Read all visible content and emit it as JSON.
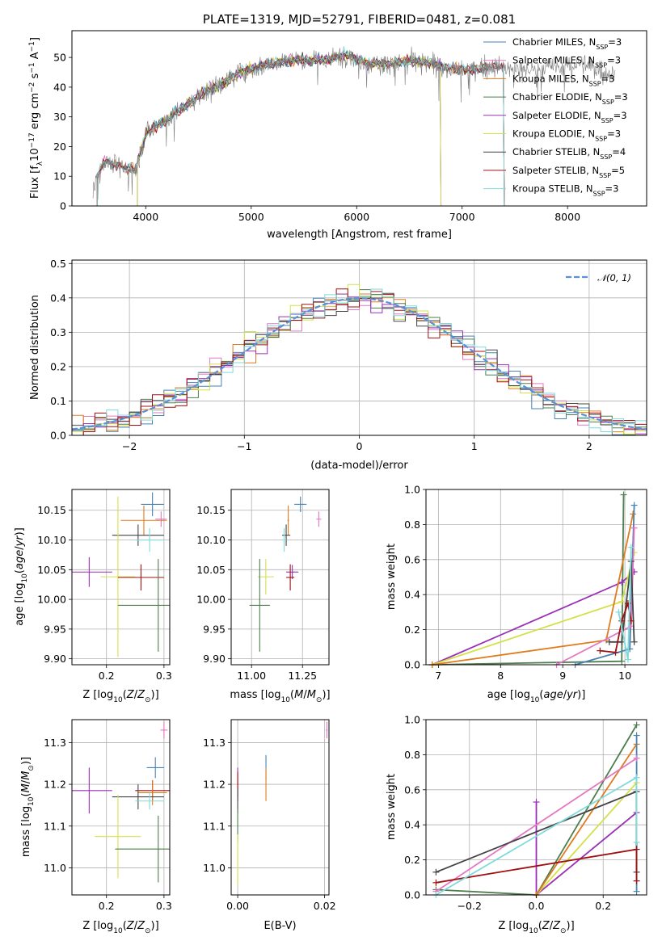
{
  "colors": {
    "chabrier_miles": "#4682b4",
    "salpeter_miles": "#e377c2",
    "kroupa_miles": "#e07b1e",
    "chabrier_elodie": "#4e7d4e",
    "salpeter_elodie": "#9a31b4",
    "kroupa_elodie": "#d4e04a",
    "chabrier_stelib": "#444444",
    "salpeter_stelib": "#a01010",
    "kroupa_stelib": "#7fdada",
    "data": "#7f7f7f",
    "normal": "#5b8fd6"
  },
  "chart_data": [
    {
      "id": "spectrum",
      "type": "line",
      "title": "PLATE=1319, MJD=52791, FIBERID=0481, z=0.081",
      "xlabel": "wavelength [Angstrom, rest frame]",
      "ylabel": "Flux [f_λ10^-17 erg cm^-2 s^-1 A^-1]",
      "xlim": [
        3300,
        8750
      ],
      "ylim": [
        0,
        59
      ],
      "xticks": [
        4000,
        5000,
        6000,
        7000,
        8000
      ],
      "yticks": [
        0,
        10,
        20,
        30,
        40,
        50
      ],
      "continuum": {
        "x": [
          3500,
          3600,
          3700,
          3800,
          3900,
          4000,
          4100,
          4200,
          4300,
          4400,
          4500,
          4700,
          4900,
          5100,
          5300,
          5500,
          5700,
          5900,
          6100,
          6300,
          6500,
          6700,
          6900,
          7100,
          7300,
          7500,
          7700,
          7900,
          8100,
          8300,
          8450
        ],
        "y": [
          6,
          15,
          14,
          13,
          12,
          24,
          27,
          29,
          32,
          34,
          37,
          41,
          45,
          47,
          49,
          49,
          49,
          51,
          48,
          48,
          49,
          48,
          46,
          46,
          47,
          46,
          46,
          47,
          48,
          46,
          44
        ]
      },
      "legend": {
        "position": "upper right",
        "entries": [
          {
            "key": "chabrier_miles",
            "text": "Chabrier MILES, N",
            "sub": "SSP",
            "tail": "=3"
          },
          {
            "key": "salpeter_miles",
            "text": "Salpeter MILES, N",
            "sub": "SSP",
            "tail": "=3"
          },
          {
            "key": "kroupa_miles",
            "text": "Kroupa MILES, N",
            "sub": "SSP",
            "tail": "=3"
          },
          {
            "key": "chabrier_elodie",
            "text": "Chabrier ELODIE, N",
            "sub": "SSP",
            "tail": "=3"
          },
          {
            "key": "salpeter_elodie",
            "text": "Salpeter ELODIE, N",
            "sub": "SSP",
            "tail": "=3"
          },
          {
            "key": "kroupa_elodie",
            "text": "Kroupa ELODIE, N",
            "sub": "SSP",
            "tail": "=3"
          },
          {
            "key": "chabrier_stelib",
            "text": "Chabrier STELIB, N",
            "sub": "SSP",
            "tail": "=4"
          },
          {
            "key": "salpeter_stelib",
            "text": "Salpeter STELIB, N",
            "sub": "SSP",
            "tail": "=5"
          },
          {
            "key": "kroupa_stelib",
            "text": "Kroupa STELIB, N",
            "sub": "SSP",
            "tail": "=3"
          }
        ]
      }
    },
    {
      "id": "residuals",
      "type": "histogram",
      "xlabel": "(data-model)/error",
      "ylabel": "Normed distribution",
      "xlim": [
        -2.5,
        2.5
      ],
      "ylim": [
        0,
        0.51
      ],
      "xticks": [
        -2,
        -1,
        0,
        1,
        2
      ],
      "yticks": [
        0.0,
        0.1,
        0.2,
        0.3,
        0.4,
        0.5
      ],
      "bin_width": 0.1,
      "legend": {
        "position": "upper right",
        "label": "𝒩(0, 1)"
      }
    },
    {
      "id": "age_vs_Z",
      "type": "scatter",
      "xlabel": "Z [log10(Z/Z⊙)]",
      "ylabel": "age [log10(age/yr)]",
      "xlim": [
        0.14,
        0.31
      ],
      "ylim": [
        9.89,
        10.185
      ],
      "xticks": [
        0.2,
        0.3
      ],
      "yticks": [
        9.9,
        9.95,
        10.0,
        10.05,
        10.1,
        10.15
      ],
      "points": [
        {
          "key": "chabrier_miles",
          "x": 0.28,
          "y": 10.16,
          "xerr": 0.02,
          "yerr": 0.02
        },
        {
          "key": "salpeter_miles",
          "x": 0.295,
          "y": 10.135,
          "xerr": 0.01,
          "yerr": 0.013
        },
        {
          "key": "kroupa_miles",
          "x": 0.265,
          "y": 10.133,
          "xerr": 0.04,
          "yerr": 0.025
        },
        {
          "key": "chabrier_stelib",
          "x": 0.255,
          "y": 10.108,
          "xerr": 0.045,
          "yerr": 0.018
        },
        {
          "key": "kroupa_stelib",
          "x": 0.275,
          "y": 10.1,
          "xerr": 0.025,
          "yerr": 0.02
        },
        {
          "key": "salpeter_elodie",
          "x": 0.17,
          "y": 10.046,
          "xerr": 0.04,
          "yerr": 0.025
        },
        {
          "key": "kroupa_elodie",
          "x": 0.22,
          "y": 10.038,
          "xerr": 0.03,
          "yerr": 0.135
        },
        {
          "key": "salpeter_stelib",
          "x": 0.26,
          "y": 10.037,
          "xerr": 0.04,
          "yerr": 0.022
        },
        {
          "key": "chabrier_elodie",
          "x": 0.29,
          "y": 9.99,
          "xerr": 0.07,
          "yerr": 0.078
        }
      ]
    },
    {
      "id": "age_vs_mass",
      "type": "scatter",
      "xlabel": "mass [log10(M/M⊙)]",
      "ylabel": "",
      "xlim": [
        10.9,
        11.38
      ],
      "ylim": [
        9.89,
        10.185
      ],
      "xticks": [
        11.0,
        11.25
      ],
      "yticks": [
        9.9,
        9.95,
        10.0,
        10.05,
        10.1,
        10.15
      ],
      "points": [
        {
          "key": "chabrier_miles",
          "x": 11.24,
          "y": 10.16,
          "xerr": 0.03,
          "yerr": 0.013
        },
        {
          "key": "salpeter_miles",
          "x": 11.33,
          "y": 10.135,
          "xerr": 0.012,
          "yerr": 0.013
        },
        {
          "key": "kroupa_miles",
          "x": 11.18,
          "y": 10.133,
          "xerr": 0.004,
          "yerr": 0.025
        },
        {
          "key": "chabrier_stelib",
          "x": 11.17,
          "y": 10.108,
          "xerr": 0.02,
          "yerr": 0.018
        },
        {
          "key": "kroupa_stelib",
          "x": 11.16,
          "y": 10.1,
          "xerr": 0.01,
          "yerr": 0.02
        },
        {
          "key": "salpeter_elodie",
          "x": 11.2,
          "y": 10.046,
          "xerr": 0.03,
          "yerr": 0.012
        },
        {
          "key": "kroupa_elodie",
          "x": 11.07,
          "y": 10.038,
          "xerr": 0.04,
          "yerr": 0.03
        },
        {
          "key": "salpeter_stelib",
          "x": 11.19,
          "y": 10.037,
          "xerr": 0.02,
          "yerr": 0.022
        },
        {
          "key": "chabrier_elodie",
          "x": 11.04,
          "y": 9.99,
          "xerr": 0.05,
          "yerr": 0.078
        }
      ]
    },
    {
      "id": "weight_vs_age",
      "type": "line",
      "xlabel": "age [log10(age/yr)]",
      "ylabel": "mass weight",
      "xlim": [
        6.8,
        10.35
      ],
      "ylim": [
        0,
        1.0
      ],
      "xticks": [
        7,
        8,
        9,
        10
      ],
      "yticks": [
        0.0,
        0.2,
        0.4,
        0.6,
        0.8,
        1.0
      ],
      "series": [
        {
          "key": "chabrier_elodie",
          "x": [
            6.9,
            9.95,
            9.98
          ],
          "y": [
            0.0,
            0.02,
            0.97
          ]
        },
        {
          "key": "salpeter_elodie",
          "x": [
            6.9,
            9.95,
            10.15
          ],
          "y": [
            0.0,
            0.47,
            0.53
          ]
        },
        {
          "key": "kroupa_elodie",
          "x": [
            6.9,
            9.95,
            10.15
          ],
          "y": [
            0.0,
            0.36,
            0.64
          ]
        },
        {
          "key": "kroupa_miles",
          "x": [
            6.9,
            9.7,
            10.13
          ],
          "y": [
            0.0,
            0.14,
            0.86
          ]
        },
        {
          "key": "chabrier_miles",
          "x": [
            9.2,
            10.08,
            10.15
          ],
          "y": [
            0.0,
            0.09,
            0.91
          ]
        },
        {
          "key": "salpeter_miles",
          "x": [
            8.9,
            10.1,
            10.15
          ],
          "y": [
            0.0,
            0.22,
            0.78
          ]
        },
        {
          "key": "chabrier_stelib",
          "x": [
            9.75,
            9.95,
            10.1,
            10.15
          ],
          "y": [
            0.13,
            0.13,
            0.59,
            0.13
          ]
        },
        {
          "key": "salpeter_stelib",
          "x": [
            9.6,
            9.85,
            9.95,
            10.05,
            10.1
          ],
          "y": [
            0.08,
            0.07,
            0.25,
            0.35,
            0.25
          ]
        },
        {
          "key": "kroupa_stelib",
          "x": [
            9.9,
            10.05,
            10.1
          ],
          "y": [
            0.3,
            0.03,
            0.67
          ]
        }
      ]
    },
    {
      "id": "mass_vs_Z",
      "type": "scatter",
      "xlabel": "Z [log10(Z/Z⊙)]",
      "ylabel": "mass [log10(M/M⊙)]",
      "xlim": [
        0.14,
        0.31
      ],
      "ylim": [
        10.935,
        11.355
      ],
      "xticks": [
        0.2,
        0.3
      ],
      "yticks": [
        11.0,
        11.1,
        11.2,
        11.3
      ],
      "points": [
        {
          "key": "salpeter_miles",
          "x": 0.3,
          "y": 11.33,
          "xerr": 0.006,
          "yerr": 0.02
        },
        {
          "key": "chabrier_miles",
          "x": 0.285,
          "y": 11.24,
          "xerr": 0.015,
          "yerr": 0.025
        },
        {
          "key": "salpeter_elodie",
          "x": 0.17,
          "y": 11.185,
          "xerr": 0.04,
          "yerr": 0.055
        },
        {
          "key": "salpeter_stelib",
          "x": 0.28,
          "y": 11.185,
          "xerr": 0.03,
          "yerr": 0.025
        },
        {
          "key": "kroupa_miles",
          "x": 0.28,
          "y": 11.18,
          "xerr": 0.025,
          "yerr": 0.03
        },
        {
          "key": "chabrier_stelib",
          "x": 0.255,
          "y": 11.17,
          "xerr": 0.045,
          "yerr": 0.03
        },
        {
          "key": "kroupa_stelib",
          "x": 0.275,
          "y": 11.16,
          "xerr": 0.025,
          "yerr": 0.02
        },
        {
          "key": "kroupa_elodie",
          "x": 0.22,
          "y": 11.075,
          "xerr": 0.04,
          "yerr": 0.1
        },
        {
          "key": "chabrier_elodie",
          "x": 0.29,
          "y": 11.045,
          "xerr": 0.075,
          "yerr": 0.08
        }
      ]
    },
    {
      "id": "mass_vs_EBV",
      "type": "scatter",
      "xlabel": "E(B-V)",
      "ylabel": "",
      "xlim": [
        -0.0015,
        0.021
      ],
      "ylim": [
        10.935,
        11.355
      ],
      "xticks": [
        0.0,
        0.02
      ],
      "yticks": [
        11.0,
        11.1,
        11.2,
        11.3
      ],
      "points": [
        {
          "key": "salpeter_miles",
          "x": 0.0205,
          "y": 11.33,
          "xerr": 0.0002,
          "yerr": 0.02
        },
        {
          "key": "chabrier_miles",
          "x": 0.0065,
          "y": 11.24,
          "xerr": 0.0001,
          "yerr": 0.03
        },
        {
          "key": "kroupa_miles",
          "x": 0.0065,
          "y": 11.2,
          "xerr": 0.0001,
          "yerr": 0.04
        },
        {
          "key": "salpeter_elodie",
          "x": 0.0,
          "y": 11.2,
          "xerr": 0.0001,
          "yerr": 0.04
        },
        {
          "key": "salpeter_stelib",
          "x": 0.0,
          "y": 11.2,
          "xerr": 0.0001,
          "yerr": 0.03
        },
        {
          "key": "chabrier_stelib",
          "x": 0.0,
          "y": 11.16,
          "xerr": 0.0001,
          "yerr": 0.03
        },
        {
          "key": "chabrier_elodie",
          "x": 0.0,
          "y": 11.1,
          "xerr": 0.0001,
          "yerr": 0.04
        },
        {
          "key": "kroupa_elodie",
          "x": 0.0,
          "y": 11.02,
          "xerr": 0.0001,
          "yerr": 0.06
        }
      ]
    },
    {
      "id": "weight_vs_Z",
      "type": "line",
      "xlabel": "Z [log10(Z/Z⊙)]",
      "ylabel": "mass weight",
      "xlim": [
        -0.33,
        0.33
      ],
      "ylim": [
        0,
        1.0
      ],
      "xticks": [
        -0.2,
        0.0,
        0.2
      ],
      "yticks": [
        0.0,
        0.2,
        0.4,
        0.6,
        0.8,
        1.0
      ],
      "series": [
        {
          "key": "chabrier_elodie",
          "x": [
            -0.3,
            0.0,
            0.3
          ],
          "y": [
            0.03,
            0.0,
            0.97
          ]
        },
        {
          "key": "salpeter_elodie",
          "x": [
            0.0,
            0.0,
            0.3
          ],
          "y": [
            0.53,
            0.0,
            0.47
          ]
        },
        {
          "key": "kroupa_elodie",
          "x": [
            0.0,
            0.3
          ],
          "y": [
            0.0,
            0.64
          ]
        },
        {
          "key": "kroupa_miles",
          "x": [
            0.0,
            0.3
          ],
          "y": [
            0.0,
            0.86
          ]
        },
        {
          "key": "chabrier_miles",
          "x": [
            0.3,
            0.3
          ],
          "y": [
            0.02,
            0.91
          ]
        },
        {
          "key": "salpeter_miles",
          "x": [
            -0.3,
            0.3
          ],
          "y": [
            0.02,
            0.78
          ]
        },
        {
          "key": "chabrier_stelib",
          "x": [
            -0.3,
            0.3,
            0.3
          ],
          "y": [
            0.13,
            0.59,
            0.13
          ]
        },
        {
          "key": "salpeter_stelib",
          "x": [
            -0.3,
            0.3,
            0.3
          ],
          "y": [
            0.07,
            0.26,
            0.08
          ]
        },
        {
          "key": "kroupa_stelib",
          "x": [
            -0.3,
            0.3,
            0.3
          ],
          "y": [
            0.0,
            0.67,
            0.3
          ]
        }
      ]
    }
  ]
}
